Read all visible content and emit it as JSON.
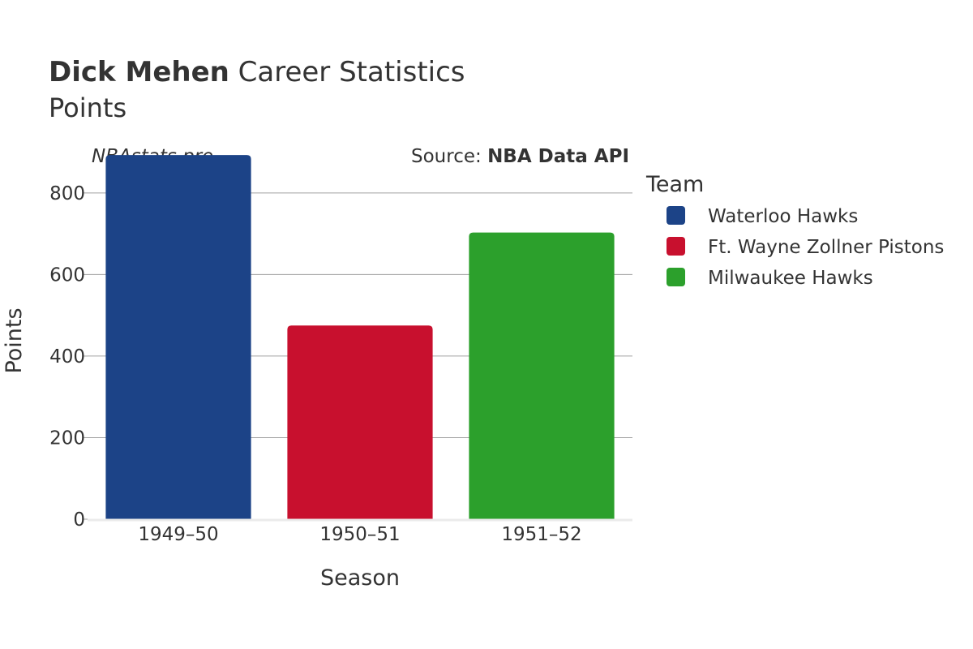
{
  "header": {
    "title_bold": "Dick Mehen",
    "title_rest": " Career Statistics",
    "subtitle": "Points"
  },
  "credit": {
    "site": "NBAstats.pro",
    "source_prefix": "Source: ",
    "source_name": "NBA Data API"
  },
  "legend": {
    "title": "Team",
    "placement": "right"
  },
  "colors": {
    "Waterloo Hawks": "#1c4387",
    "Ft. Wayne Zollner Pistons": "#c8102e",
    "Milwaukee Hawks": "#2ca02c",
    "grid": "#a0a0a0",
    "text": "#333333"
  },
  "chart_data": {
    "type": "bar",
    "categories": [
      "1949–50",
      "1950–51",
      "1951–52"
    ],
    "series": [
      {
        "name": "Waterloo Hawks",
        "category": "1949–50",
        "value": 893
      },
      {
        "name": "Ft. Wayne Zollner Pistons",
        "category": "1950–51",
        "value": 475
      },
      {
        "name": "Milwaukee Hawks",
        "category": "1951–52",
        "value": 703
      }
    ],
    "xlabel": "Season",
    "ylabel": "Points",
    "ylim": [
      0,
      935
    ],
    "yticks": [
      0,
      200,
      400,
      600,
      800
    ],
    "grid": true
  }
}
